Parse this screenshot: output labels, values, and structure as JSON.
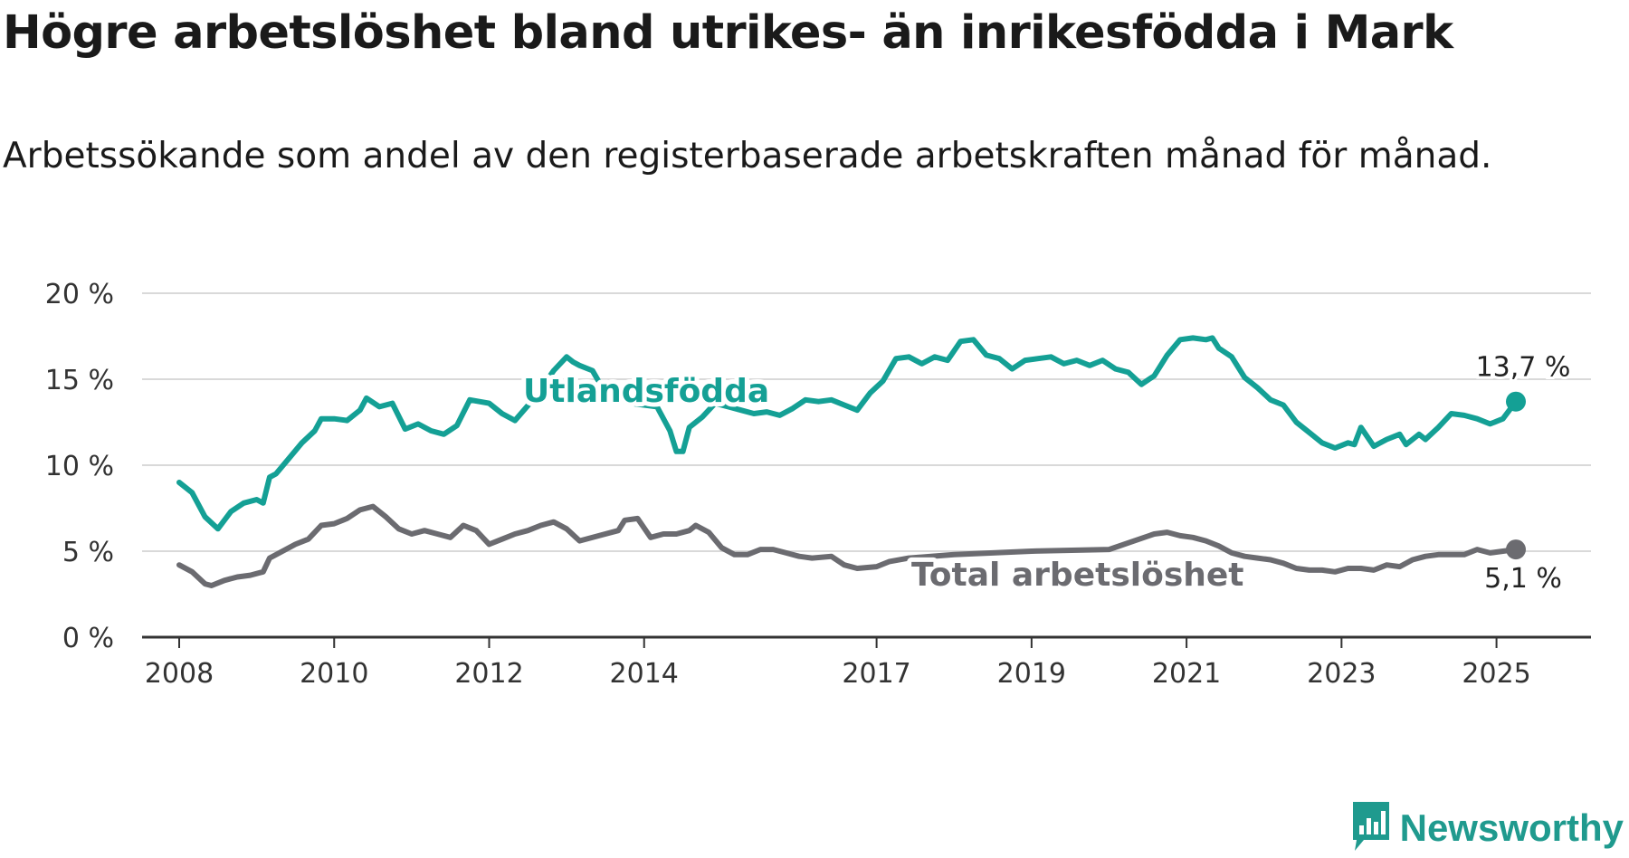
{
  "title": "Högre arbetslöshet bland utrikes- än inrikesfödda i Mark",
  "subtitle": "Arbetssökande som andel av den registerbaserade arbetskraften månad för månad.",
  "brand": {
    "name": "Newsworthy",
    "icon": "newsworthy-logo-icon",
    "color": "#1f9a8e"
  },
  "chart_data": {
    "type": "line",
    "grid": true,
    "ylim": [
      0,
      20
    ],
    "xlim": [
      "2008-01",
      "2025-04"
    ],
    "y_ticks": [
      0,
      5,
      10,
      15,
      20
    ],
    "y_tick_labels": [
      "0 %",
      "5 %",
      "10 %",
      "15 %",
      "20 %"
    ],
    "x_ticks": [
      "2008-01",
      "2010-01",
      "2012-01",
      "2014-01",
      "2017-01",
      "2019-01",
      "2021-01",
      "2023-01",
      "2025-01"
    ],
    "x_tick_labels": [
      "2008",
      "2010",
      "2012",
      "2014",
      "2017",
      "2019",
      "2021",
      "2023",
      "2025"
    ],
    "series": [
      {
        "name": "Utlandsfödda",
        "color": "#14a095",
        "end_label": "13,7 %",
        "points": [
          [
            "2008-01",
            9.0
          ],
          [
            "2008-03",
            8.4
          ],
          [
            "2008-05",
            7.0
          ],
          [
            "2008-07",
            6.3
          ],
          [
            "2008-09",
            7.3
          ],
          [
            "2008-11",
            7.8
          ],
          [
            "2009-01",
            8.0
          ],
          [
            "2009-02",
            7.8
          ],
          [
            "2009-03",
            9.3
          ],
          [
            "2009-04",
            9.5
          ],
          [
            "2009-06",
            10.4
          ],
          [
            "2009-08",
            11.3
          ],
          [
            "2009-10",
            12.0
          ],
          [
            "2009-11",
            12.7
          ],
          [
            "2010-01",
            12.7
          ],
          [
            "2010-03",
            12.6
          ],
          [
            "2010-05",
            13.2
          ],
          [
            "2010-06",
            13.9
          ],
          [
            "2010-08",
            13.4
          ],
          [
            "2010-10",
            13.6
          ],
          [
            "2010-12",
            12.1
          ],
          [
            "2011-02",
            12.4
          ],
          [
            "2011-04",
            12.0
          ],
          [
            "2011-06",
            11.8
          ],
          [
            "2011-08",
            12.3
          ],
          [
            "2011-10",
            13.8
          ],
          [
            "2012-01",
            13.6
          ],
          [
            "2012-03",
            13.0
          ],
          [
            "2012-05",
            12.6
          ],
          [
            "2012-08",
            13.9
          ],
          [
            "2012-11",
            15.5
          ],
          [
            "2013-01",
            16.3
          ],
          [
            "2013-02",
            16.0
          ],
          [
            "2013-03",
            15.8
          ],
          [
            "2013-05",
            15.5
          ],
          [
            "2013-07",
            14.2
          ],
          [
            "2013-09",
            13.8
          ],
          [
            "2013-11",
            13.6
          ],
          [
            "2014-01",
            13.5
          ],
          [
            "2014-03",
            13.4
          ],
          [
            "2014-05",
            12.0
          ],
          [
            "2014-06",
            10.8
          ],
          [
            "2014-07",
            10.8
          ],
          [
            "2014-08",
            12.2
          ],
          [
            "2014-10",
            12.8
          ],
          [
            "2014-12",
            13.6
          ],
          [
            "2015-02",
            13.4
          ],
          [
            "2015-04",
            13.2
          ],
          [
            "2015-06",
            13.0
          ],
          [
            "2015-08",
            13.1
          ],
          [
            "2015-10",
            12.9
          ],
          [
            "2015-12",
            13.3
          ],
          [
            "2016-02",
            13.8
          ],
          [
            "2016-04",
            13.7
          ],
          [
            "2016-06",
            13.8
          ],
          [
            "2016-08",
            13.5
          ],
          [
            "2016-10",
            13.2
          ],
          [
            "2016-12",
            14.2
          ],
          [
            "2017-02",
            14.9
          ],
          [
            "2017-04",
            16.2
          ],
          [
            "2017-06",
            16.3
          ],
          [
            "2017-08",
            15.9
          ],
          [
            "2017-10",
            16.3
          ],
          [
            "2017-12",
            16.1
          ],
          [
            "2018-02",
            17.2
          ],
          [
            "2018-04",
            17.3
          ],
          [
            "2018-06",
            16.4
          ],
          [
            "2018-08",
            16.2
          ],
          [
            "2018-10",
            15.6
          ],
          [
            "2018-12",
            16.1
          ],
          [
            "2019-02",
            16.2
          ],
          [
            "2019-04",
            16.3
          ],
          [
            "2019-06",
            15.9
          ],
          [
            "2019-08",
            16.1
          ],
          [
            "2019-10",
            15.8
          ],
          [
            "2019-12",
            16.1
          ],
          [
            "2020-02",
            15.6
          ],
          [
            "2020-04",
            15.4
          ],
          [
            "2020-06",
            14.7
          ],
          [
            "2020-08",
            15.2
          ],
          [
            "2020-10",
            16.4
          ],
          [
            "2020-12",
            17.3
          ],
          [
            "2021-02",
            17.4
          ],
          [
            "2021-04",
            17.3
          ],
          [
            "2021-05",
            17.4
          ],
          [
            "2021-06",
            16.8
          ],
          [
            "2021-08",
            16.3
          ],
          [
            "2021-10",
            15.1
          ],
          [
            "2021-12",
            14.5
          ],
          [
            "2022-02",
            13.8
          ],
          [
            "2022-04",
            13.5
          ],
          [
            "2022-06",
            12.5
          ],
          [
            "2022-08",
            11.9
          ],
          [
            "2022-10",
            11.3
          ],
          [
            "2022-12",
            11.0
          ],
          [
            "2023-02",
            11.3
          ],
          [
            "2023-03",
            11.2
          ],
          [
            "2023-04",
            12.2
          ],
          [
            "2023-06",
            11.1
          ],
          [
            "2023-08",
            11.5
          ],
          [
            "2023-10",
            11.8
          ],
          [
            "2023-11",
            11.2
          ],
          [
            "2024-01",
            11.8
          ],
          [
            "2024-02",
            11.5
          ],
          [
            "2024-04",
            12.2
          ],
          [
            "2024-06",
            13.0
          ],
          [
            "2024-08",
            12.9
          ],
          [
            "2024-10",
            12.7
          ],
          [
            "2024-12",
            12.4
          ],
          [
            "2025-02",
            12.7
          ],
          [
            "2025-04",
            13.7
          ]
        ]
      },
      {
        "name": "Total arbetslöshet",
        "color": "#6b6b70",
        "end_label": "5,1 %",
        "points": [
          [
            "2008-01",
            4.2
          ],
          [
            "2008-03",
            3.8
          ],
          [
            "2008-05",
            3.1
          ],
          [
            "2008-06",
            3.0
          ],
          [
            "2008-08",
            3.3
          ],
          [
            "2008-10",
            3.5
          ],
          [
            "2008-12",
            3.6
          ],
          [
            "2009-02",
            3.8
          ],
          [
            "2009-03",
            4.6
          ],
          [
            "2009-05",
            5.0
          ],
          [
            "2009-07",
            5.4
          ],
          [
            "2009-09",
            5.7
          ],
          [
            "2009-11",
            6.5
          ],
          [
            "2010-01",
            6.6
          ],
          [
            "2010-03",
            6.9
          ],
          [
            "2010-05",
            7.4
          ],
          [
            "2010-07",
            7.6
          ],
          [
            "2010-09",
            7.0
          ],
          [
            "2010-11",
            6.3
          ],
          [
            "2011-01",
            6.0
          ],
          [
            "2011-03",
            6.2
          ],
          [
            "2011-05",
            6.0
          ],
          [
            "2011-07",
            5.8
          ],
          [
            "2011-09",
            6.5
          ],
          [
            "2011-11",
            6.2
          ],
          [
            "2012-01",
            5.4
          ],
          [
            "2012-03",
            5.7
          ],
          [
            "2012-05",
            6.0
          ],
          [
            "2012-07",
            6.2
          ],
          [
            "2012-09",
            6.5
          ],
          [
            "2012-11",
            6.7
          ],
          [
            "2013-01",
            6.3
          ],
          [
            "2013-03",
            5.6
          ],
          [
            "2013-06",
            5.9
          ],
          [
            "2013-09",
            6.2
          ],
          [
            "2013-10",
            6.8
          ],
          [
            "2013-12",
            6.9
          ],
          [
            "2014-02",
            5.8
          ],
          [
            "2014-04",
            6.0
          ],
          [
            "2014-06",
            6.0
          ],
          [
            "2014-08",
            6.2
          ],
          [
            "2014-09",
            6.5
          ],
          [
            "2014-11",
            6.1
          ],
          [
            "2015-01",
            5.2
          ],
          [
            "2015-03",
            4.8
          ],
          [
            "2015-05",
            4.8
          ],
          [
            "2015-07",
            5.1
          ],
          [
            "2015-09",
            5.1
          ],
          [
            "2015-11",
            4.9
          ],
          [
            "2016-01",
            4.7
          ],
          [
            "2016-03",
            4.6
          ],
          [
            "2016-06",
            4.7
          ],
          [
            "2016-08",
            4.2
          ],
          [
            "2016-10",
            4.0
          ],
          [
            "2017-01",
            4.1
          ],
          [
            "2017-03",
            4.4
          ],
          [
            "2017-06",
            4.6
          ],
          [
            "2018-01",
            4.8
          ],
          [
            "2019-01",
            5.0
          ],
          [
            "2020-01",
            5.1
          ],
          [
            "2020-08",
            6.0
          ],
          [
            "2020-10",
            6.1
          ],
          [
            "2020-12",
            5.9
          ],
          [
            "2021-02",
            5.8
          ],
          [
            "2021-04",
            5.6
          ],
          [
            "2021-06",
            5.3
          ],
          [
            "2021-08",
            4.9
          ],
          [
            "2021-10",
            4.7
          ],
          [
            "2021-12",
            4.6
          ],
          [
            "2022-02",
            4.5
          ],
          [
            "2022-04",
            4.3
          ],
          [
            "2022-06",
            4.0
          ],
          [
            "2022-08",
            3.9
          ],
          [
            "2022-10",
            3.9
          ],
          [
            "2022-12",
            3.8
          ],
          [
            "2023-02",
            4.0
          ],
          [
            "2023-04",
            4.0
          ],
          [
            "2023-06",
            3.9
          ],
          [
            "2023-08",
            4.2
          ],
          [
            "2023-10",
            4.1
          ],
          [
            "2023-12",
            4.5
          ],
          [
            "2024-02",
            4.7
          ],
          [
            "2024-04",
            4.8
          ],
          [
            "2024-06",
            4.8
          ],
          [
            "2024-08",
            4.8
          ],
          [
            "2024-10",
            5.1
          ],
          [
            "2024-12",
            4.9
          ],
          [
            "2025-02",
            5.0
          ],
          [
            "2025-04",
            5.1
          ]
        ]
      }
    ]
  }
}
